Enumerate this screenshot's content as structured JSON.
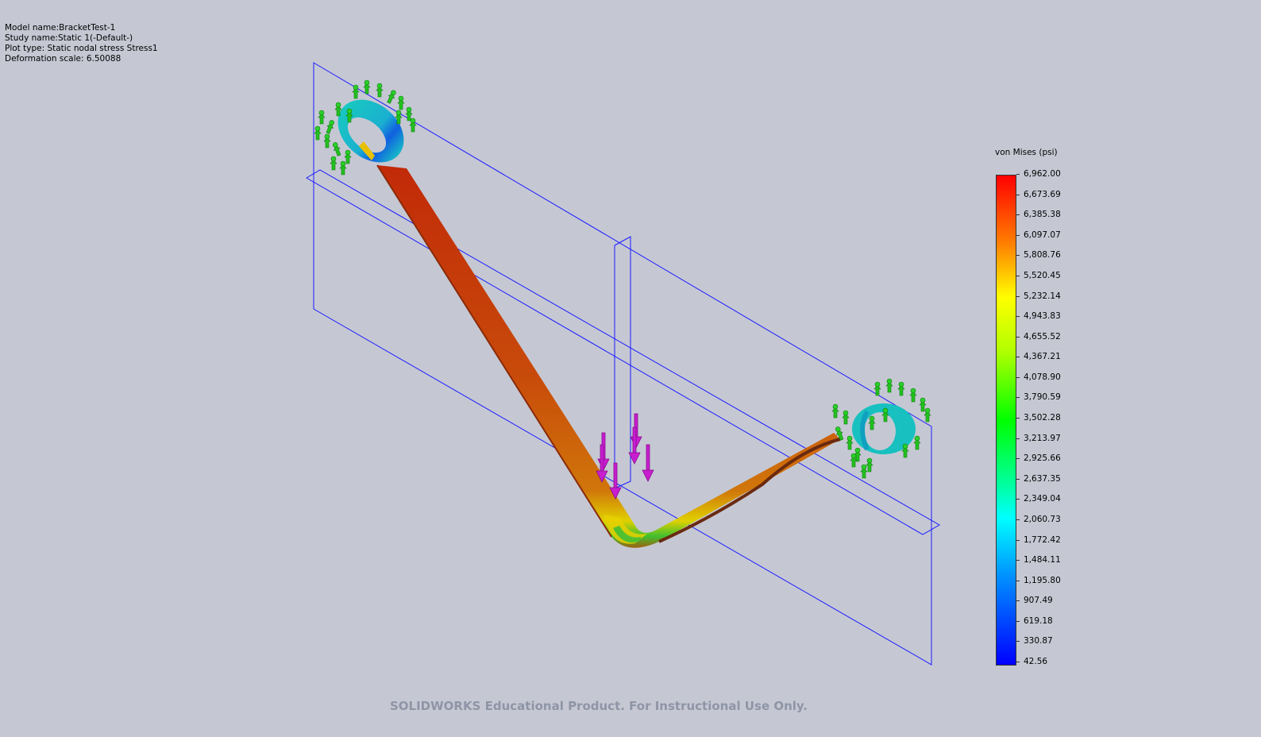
{
  "info": {
    "model_name": "Model name:BracketTest-1",
    "study_name": "Study name:Static 1(-Default-)",
    "plot_type": "Plot type: Static nodal stress Stress1",
    "deformation_scale": "Deformation scale: 6.50088"
  },
  "legend": {
    "title": "von Mises (psi)",
    "values": [
      "6,962.00",
      "6,673.69",
      "6,385.38",
      "6,097.07",
      "5,808.76",
      "5,520.45",
      "5,232.14",
      "4,943.83",
      "4,655.52",
      "4,367.21",
      "4,078.90",
      "3,790.59",
      "3,502.28",
      "3,213.97",
      "2,925.66",
      "2,637.35",
      "2,349.04",
      "2,060.73",
      "1,772.42",
      "1,484.11",
      "1,195.80",
      "907.49",
      "619.18",
      "330.87",
      "42.56"
    ]
  },
  "watermark": "SOLIDWORKS Educational Product. For Instructional Use Only.",
  "colors": {
    "background": "#c5c8d3",
    "plane_outline": "#1a1aff",
    "fixture_green": "#22c21e",
    "load_arrow": "#c81ecf"
  }
}
